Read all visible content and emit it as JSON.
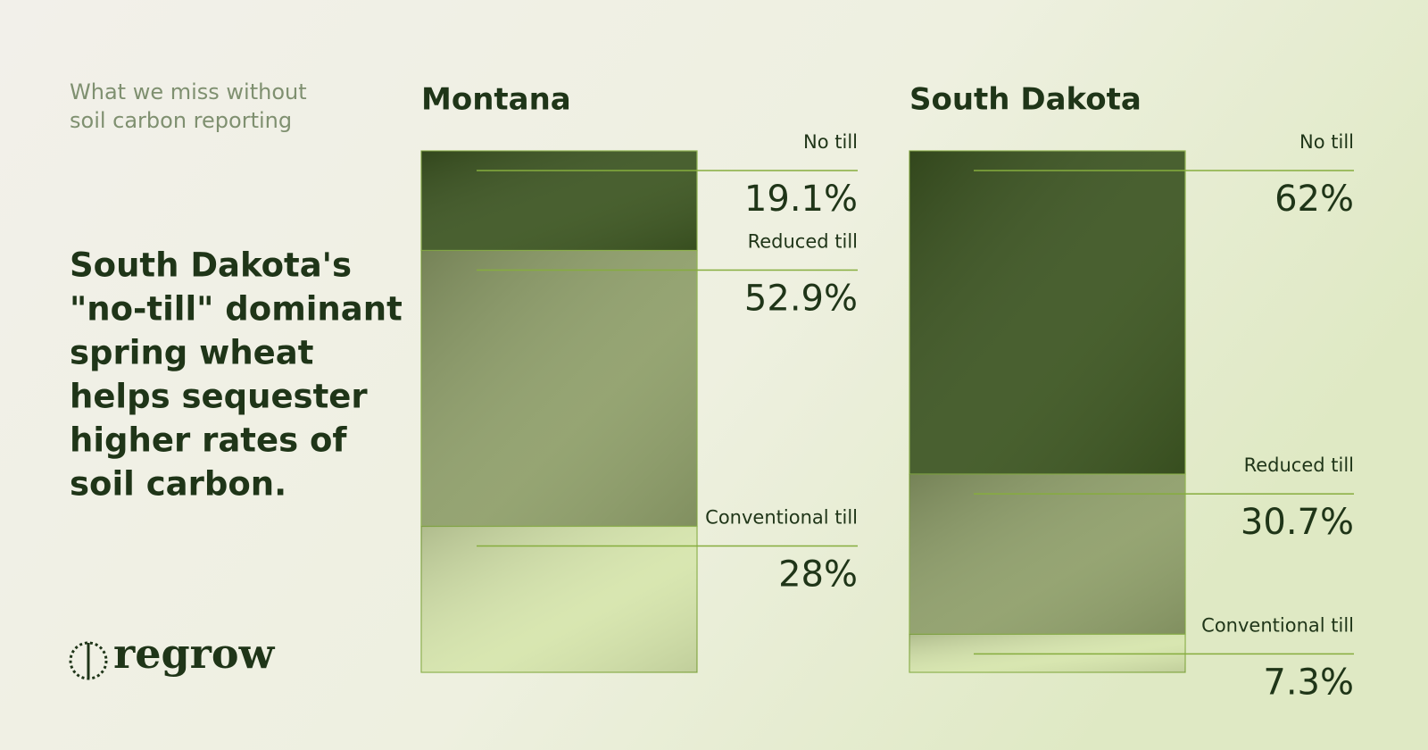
{
  "eyebrow": [
    "What we miss without",
    "soil carbon reporting"
  ],
  "headline": [
    "South Dakota's",
    "\"no-till\" dominant",
    "spring wheat",
    "helps sequester",
    "higher rates of",
    "soil carbon."
  ],
  "logo": "regrow",
  "chart_data": [
    {
      "type": "stacked-bar",
      "title": "Montana",
      "categories": [
        null
      ],
      "ylim": [
        0,
        100
      ],
      "series": [
        {
          "name": "No till",
          "color": "#3d5622",
          "values": [
            19.1
          ],
          "value_labels": [
            "19.1%"
          ]
        },
        {
          "name": "Reduced till",
          "color": "#8f9f6a",
          "values": [
            52.9
          ],
          "value_labels": [
            "52.9%"
          ]
        },
        {
          "name": "Conventional till",
          "color": "#d6e5ac",
          "values": [
            28
          ],
          "value_labels": [
            "28%"
          ]
        }
      ]
    },
    {
      "type": "stacked-bar",
      "title": "South Dakota",
      "categories": [
        null
      ],
      "ylim": [
        0,
        100
      ],
      "series": [
        {
          "name": "No till",
          "color": "#3d5622",
          "values": [
            62
          ],
          "value_labels": [
            "62%"
          ]
        },
        {
          "name": "Reduced till",
          "color": "#8f9f6a",
          "values": [
            30.7
          ],
          "value_labels": [
            "30.7%"
          ]
        },
        {
          "name": "Conventional till",
          "color": "#d6e5ac",
          "values": [
            7.3
          ],
          "value_labels": [
            "7.3%"
          ]
        }
      ]
    }
  ]
}
